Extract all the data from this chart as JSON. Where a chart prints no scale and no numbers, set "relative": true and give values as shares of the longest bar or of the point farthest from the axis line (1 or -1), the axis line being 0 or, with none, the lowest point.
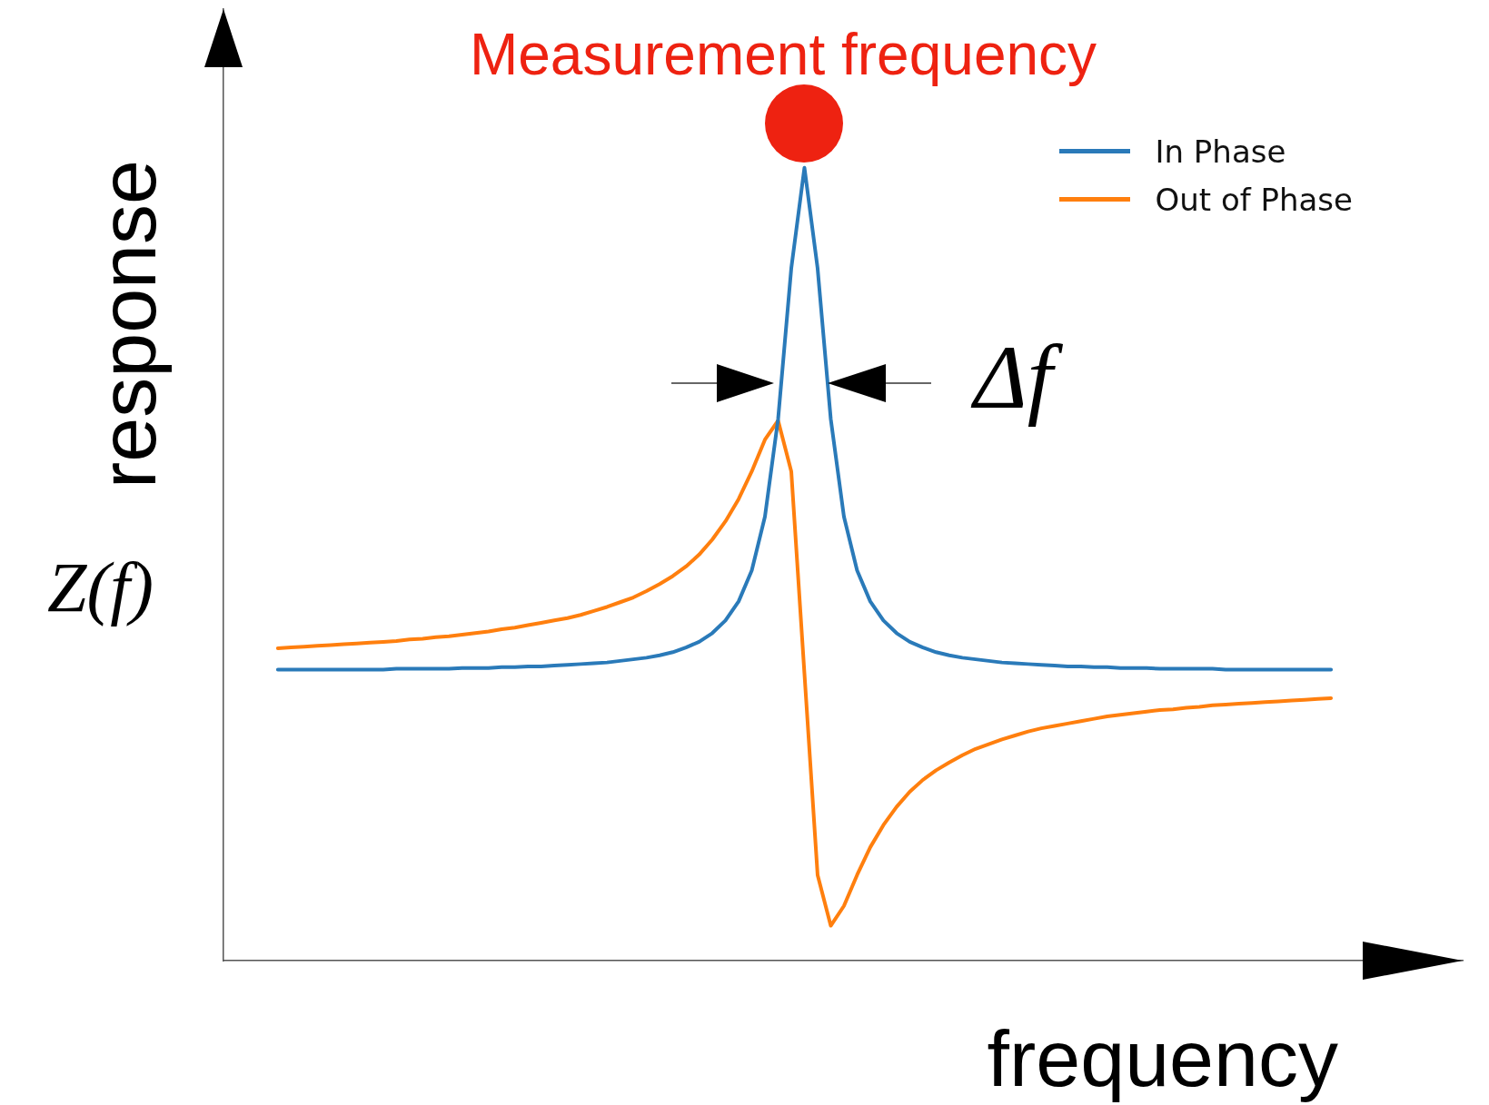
{
  "chart_data": {
    "type": "line",
    "relative": true,
    "xlabel": "frequency",
    "ylabel": "response",
    "legend": "top right",
    "grid": false,
    "marker": "none",
    "line_style": "solid",
    "annotations": [
      "Measurement frequency",
      "Z(f)",
      "Δf"
    ],
    "categories": [
      null,
      null,
      null,
      null,
      null,
      null,
      null,
      null,
      null,
      null,
      null,
      null,
      null,
      null,
      null,
      null,
      null,
      null,
      null,
      null,
      null,
      null,
      null,
      null,
      null,
      null,
      null,
      null,
      null,
      null,
      null,
      null,
      null,
      null,
      null,
      null,
      null,
      null,
      null,
      null,
      null,
      null,
      null,
      null,
      null,
      null,
      null,
      null,
      null,
      null,
      null,
      null,
      null,
      null,
      null,
      null,
      null,
      null,
      null,
      null,
      null,
      null,
      null,
      null,
      null,
      null,
      null,
      null,
      null,
      null,
      null,
      null,
      null,
      null,
      null,
      null,
      null,
      null,
      null,
      null,
      null
    ],
    "series": [
      {
        "name": "In Phase",
        "color": "#2a7ab9",
        "values": [
          0.367,
          0.367,
          0.367,
          0.367,
          0.367,
          0.367,
          0.367,
          0.367,
          0.367,
          0.368,
          0.368,
          0.368,
          0.368,
          0.368,
          0.369,
          0.369,
          0.369,
          0.37,
          0.37,
          0.371,
          0.371,
          0.372,
          0.373,
          0.374,
          0.375,
          0.376,
          0.378,
          0.38,
          0.382,
          0.385,
          0.389,
          0.395,
          0.402,
          0.413,
          0.429,
          0.453,
          0.492,
          0.56,
          0.683,
          0.873,
          1,
          0.873,
          0.683,
          0.56,
          0.492,
          0.453,
          0.429,
          0.413,
          0.402,
          0.395,
          0.389,
          0.385,
          0.382,
          0.38,
          0.378,
          0.376,
          0.375,
          0.374,
          0.373,
          0.372,
          0.371,
          0.371,
          0.37,
          0.37,
          0.369,
          0.369,
          0.369,
          0.368,
          0.368,
          0.368,
          0.368,
          0.368,
          0.367,
          0.367,
          0.367,
          0.367,
          0.367,
          0.367,
          0.367,
          0.367,
          0.367
        ]
      },
      {
        "name": "Out of Phase",
        "color": "#ff7f0e",
        "values": [
          0.394,
          0.395,
          0.396,
          0.397,
          0.398,
          0.399,
          0.4,
          0.401,
          0.402,
          0.403,
          0.405,
          0.406,
          0.408,
          0.409,
          0.411,
          0.413,
          0.415,
          0.418,
          0.42,
          0.423,
          0.426,
          0.429,
          0.432,
          0.436,
          0.441,
          0.446,
          0.452,
          0.458,
          0.466,
          0.475,
          0.485,
          0.497,
          0.512,
          0.531,
          0.554,
          0.582,
          0.617,
          0.657,
          0.681,
          0.617,
          0.362,
          0.108,
          0.044,
          0.069,
          0.108,
          0.143,
          0.171,
          0.194,
          0.213,
          0.228,
          0.24,
          0.25,
          0.259,
          0.267,
          0.273,
          0.279,
          0.284,
          0.289,
          0.293,
          0.296,
          0.299,
          0.302,
          0.305,
          0.308,
          0.31,
          0.312,
          0.314,
          0.316,
          0.317,
          0.319,
          0.32,
          0.322,
          0.323,
          0.324,
          0.325,
          0.326,
          0.327,
          0.328,
          0.329,
          0.33,
          0.331
        ]
      }
    ]
  }
}
